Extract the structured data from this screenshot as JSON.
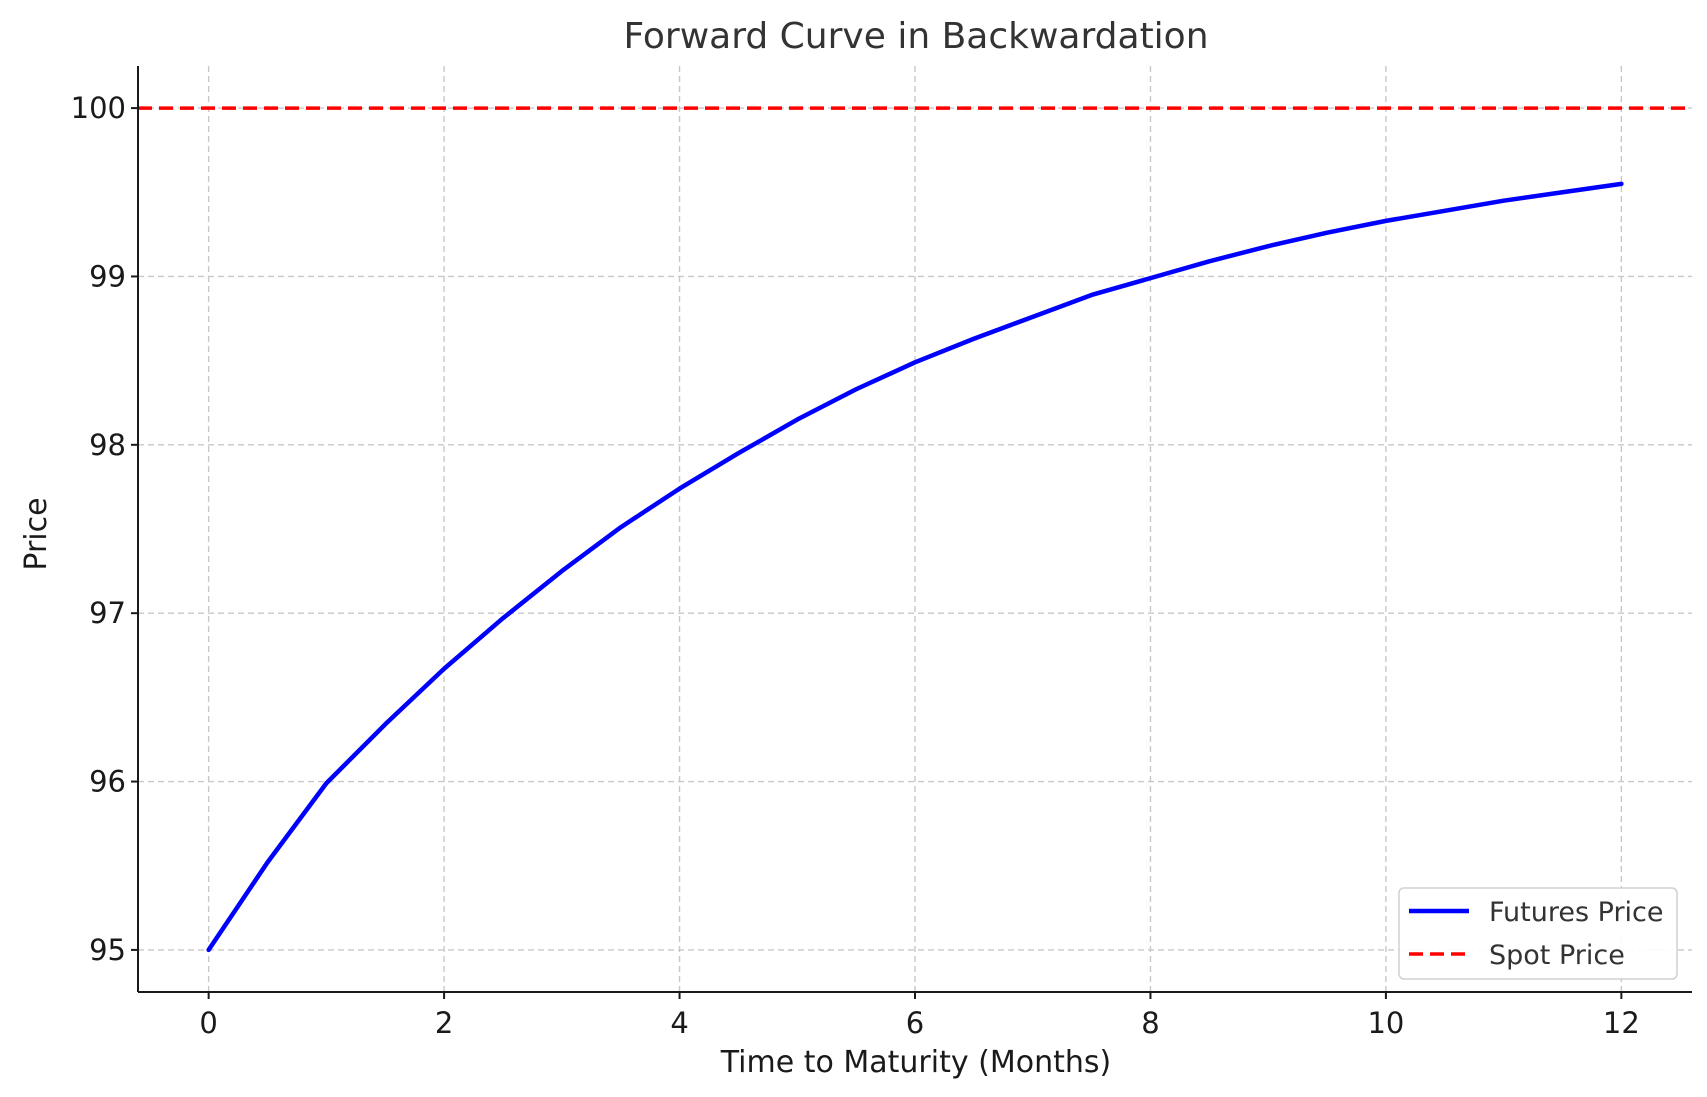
{
  "chart_data": {
    "type": "line",
    "title": "Forward Curve in Backwardation",
    "xlabel": "Time to Maturity (Months)",
    "ylabel": "Price",
    "xlim": [
      -0.6,
      12.6
    ],
    "ylim": [
      94.75,
      100.25
    ],
    "x_ticks": [
      0,
      2,
      4,
      6,
      8,
      10,
      12
    ],
    "y_ticks": [
      95,
      96,
      97,
      98,
      99,
      100
    ],
    "grid": true,
    "grid_style": "dashed",
    "legend_position": "lower-right",
    "series": [
      {
        "name": "Futures Price",
        "style": "solid",
        "color": "#0000ff",
        "x": [
          0,
          0.5,
          1,
          1.5,
          2,
          2.5,
          3,
          3.5,
          4,
          4.5,
          5,
          5.5,
          6,
          6.5,
          7,
          7.5,
          8,
          8.5,
          9,
          9.5,
          10,
          10.5,
          11,
          11.5,
          12
        ],
        "values": [
          95.0,
          95.52,
          95.99,
          96.34,
          96.67,
          96.97,
          97.25,
          97.51,
          97.74,
          97.95,
          98.15,
          98.33,
          98.49,
          98.63,
          98.76,
          98.89,
          98.99,
          99.09,
          99.18,
          99.26,
          99.33,
          99.39,
          99.45,
          99.5,
          99.55
        ]
      },
      {
        "name": "Spot Price",
        "style": "dashed",
        "color": "#ff0000",
        "x": [
          -0.6,
          12.6
        ],
        "values": [
          100,
          100
        ]
      }
    ]
  }
}
